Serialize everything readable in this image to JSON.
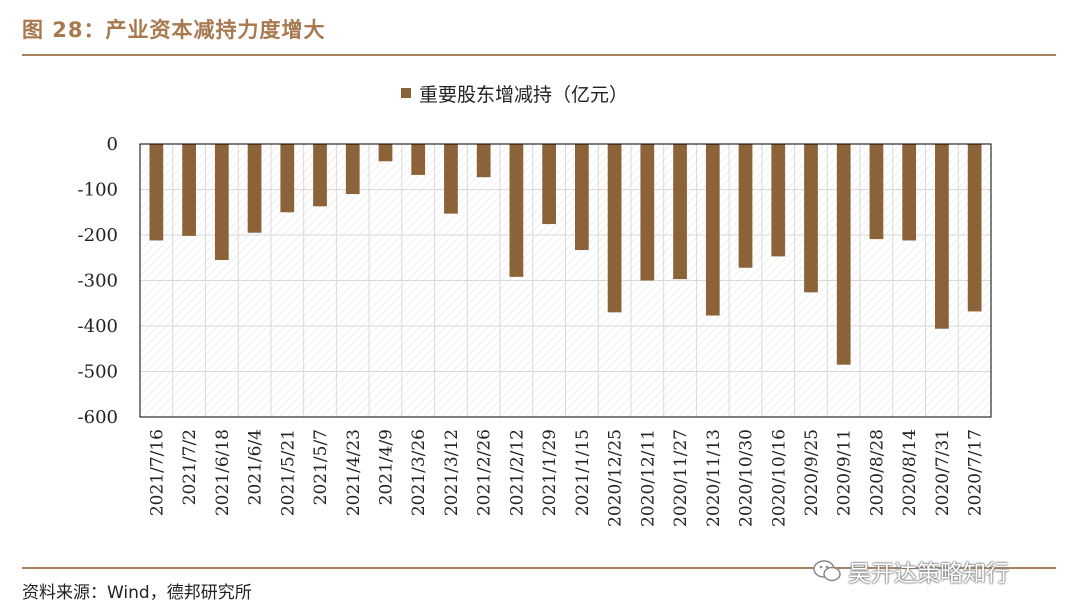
{
  "figure": {
    "title": "图 28：产业资本减持力度增大",
    "source": "资料来源：Wind，德邦研究所",
    "watermark_text": "吴开达策略知行",
    "watermark_icon": "wechat-icon"
  },
  "colors": {
    "bar": "#8c6239",
    "accent": "#a8784e",
    "grid": "#d9d9d9",
    "hatch": "#e6e6e6"
  },
  "chart_data": {
    "type": "bar",
    "legend": "重要股东增减持（亿元）",
    "legend_position": "top-center",
    "grid": true,
    "ylim": [
      -600,
      0
    ],
    "yticks": [
      0,
      -100,
      -200,
      -300,
      -400,
      -500,
      -600
    ],
    "categories": [
      "2021/7/16",
      "2021/7/2",
      "2021/6/18",
      "2021/6/4",
      "2021/5/21",
      "2021/5/7",
      "2021/4/23",
      "2021/4/9",
      "2021/3/26",
      "2021/3/12",
      "2021/2/26",
      "2021/2/12",
      "2021/1/29",
      "2021/1/15",
      "2020/12/25",
      "2020/12/11",
      "2020/11/27",
      "2020/11/13",
      "2020/10/30",
      "2020/10/16",
      "2020/9/25",
      "2020/9/11",
      "2020/8/28",
      "2020/8/14",
      "2020/7/31",
      "2020/7/17"
    ],
    "series": [
      {
        "name": "重要股东增减持（亿元）",
        "values": [
          -212,
          -202,
          -255,
          -195,
          -150,
          -137,
          -110,
          -38,
          -68,
          -153,
          -73,
          -292,
          -176,
          -233,
          -370,
          -300,
          -297,
          -377,
          -272,
          -247,
          -326,
          -485,
          -209,
          -212,
          -406,
          -368
        ]
      }
    ]
  }
}
